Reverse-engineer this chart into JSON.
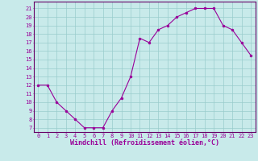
{
  "x": [
    0,
    1,
    2,
    3,
    4,
    5,
    6,
    7,
    8,
    9,
    10,
    11,
    12,
    13,
    14,
    15,
    16,
    17,
    18,
    19,
    20,
    21,
    22,
    23
  ],
  "y": [
    12,
    12,
    10,
    9,
    8,
    7,
    7,
    7,
    9,
    10.5,
    13,
    17.5,
    17,
    18.5,
    19,
    20,
    20.5,
    21,
    21,
    21,
    19,
    18.5,
    17,
    15.5
  ],
  "line_color": "#990099",
  "marker_color": "#990099",
  "bg_color": "#c8eaea",
  "grid_color": "#99cccc",
  "xlabel": "Windchill (Refroidissement éolien,°C)",
  "xlim": [
    -0.5,
    23.5
  ],
  "ylim": [
    6.5,
    21.8
  ],
  "yticks": [
    7,
    8,
    9,
    10,
    11,
    12,
    13,
    14,
    15,
    16,
    17,
    18,
    19,
    20,
    21
  ],
  "xticks": [
    0,
    1,
    2,
    3,
    4,
    5,
    6,
    7,
    8,
    9,
    10,
    11,
    12,
    13,
    14,
    15,
    16,
    17,
    18,
    19,
    20,
    21,
    22,
    23
  ],
  "tick_color": "#990099",
  "axis_color": "#660066",
  "label_fontsize": 5.5,
  "tick_fontsize": 5.0,
  "xlabel_fontsize": 6.0
}
